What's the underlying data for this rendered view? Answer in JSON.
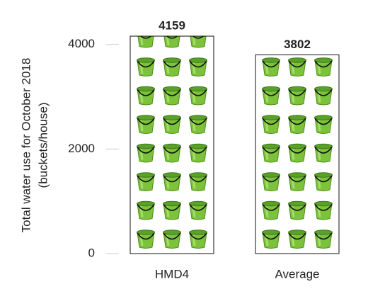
{
  "chart_data": {
    "type": "bar",
    "y_label": [
      "Total water use for October 2018",
      "(buckets/house)"
    ],
    "categories": [
      "HMD4",
      "Average"
    ],
    "values": [
      4159,
      3802
    ],
    "color": "#7cc23a",
    "ylim": [
      0,
      4200
    ],
    "yticks": [
      0,
      2000,
      4000
    ]
  }
}
